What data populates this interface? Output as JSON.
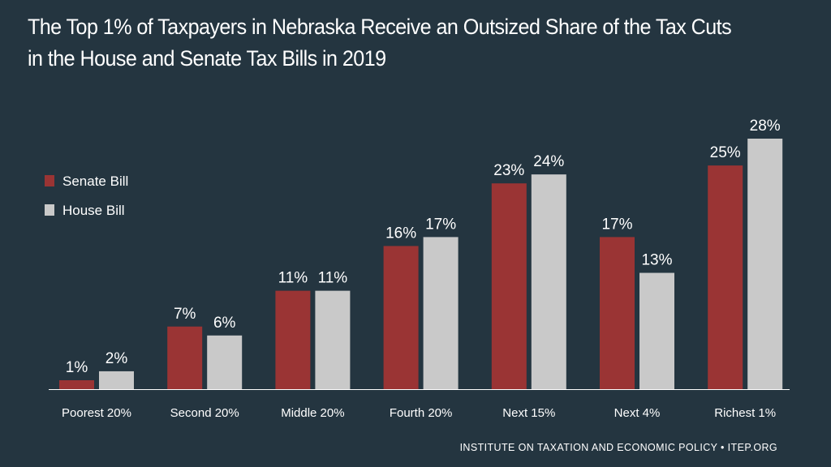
{
  "title": {
    "line1": "The Top 1% of Taxpayers in Nebraska Receive an Outsized Share of the Tax Cuts",
    "line2": "in the House and Senate Tax Bills in 2019"
  },
  "footer": "INSTITUTE ON TAXATION AND ECONOMIC POLICY • ITEP.ORG",
  "colors": {
    "background": "#243540",
    "senate": "#9a3434",
    "house": "#c9c9c9",
    "axis": "#ffffff",
    "text": "#ffffff"
  },
  "chart_data": {
    "type": "bar",
    "title": "The Top 1% of Taxpayers in Nebraska Receive an Outsized Share of the Tax Cuts in the House and Senate Tax Bills in 2019",
    "xlabel": "",
    "ylabel": "",
    "ylim": [
      0,
      28
    ],
    "grid": false,
    "legend_position": "top-left",
    "categories": [
      "Poorest 20%",
      "Second 20%",
      "Middle 20%",
      "Fourth 20%",
      "Next 15%",
      "Next 4%",
      "Richest 1%"
    ],
    "series": [
      {
        "name": "Senate Bill",
        "values": [
          1,
          7,
          11,
          16,
          23,
          17,
          25
        ],
        "labels": [
          "1%",
          "7%",
          "11%",
          "16%",
          "23%",
          "17%",
          "25%"
        ]
      },
      {
        "name": "House Bill",
        "values": [
          2,
          6,
          11,
          17,
          24,
          13,
          28
        ],
        "labels": [
          "2%",
          "6%",
          "11%",
          "17%",
          "24%",
          "13%",
          "28%"
        ]
      }
    ]
  }
}
